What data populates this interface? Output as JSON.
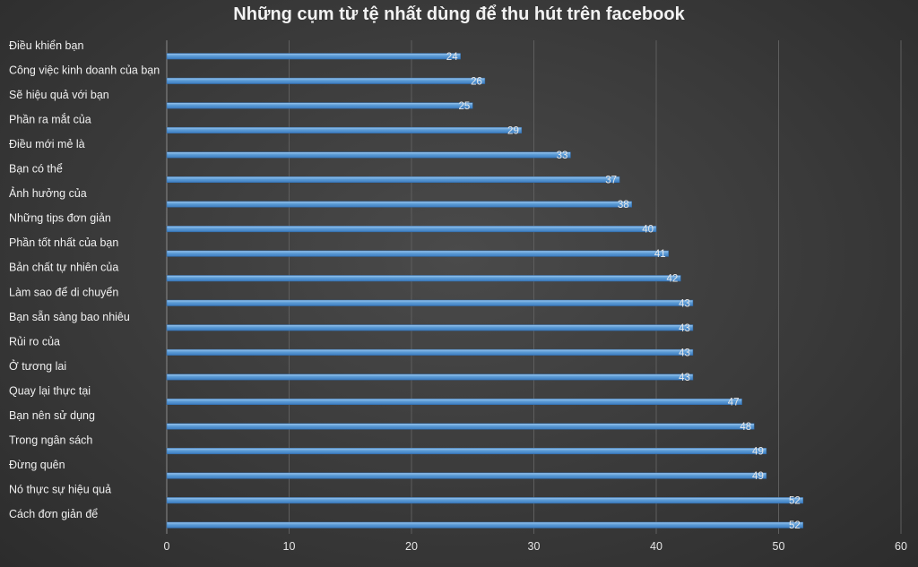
{
  "chart_data": {
    "type": "bar",
    "orientation": "horizontal",
    "title": "Những cụm từ tệ nhất dùng để thu hút trên facebook",
    "xlabel": "",
    "ylabel": "",
    "xlim": [
      0,
      60
    ],
    "x_ticks": [
      0,
      10,
      20,
      30,
      40,
      50,
      60
    ],
    "grid": true,
    "legend": "none",
    "bar_color": "#5b9bd5",
    "background_color": "#3c3c3c",
    "categories": [
      "Điều khiển bạn",
      "Công việc kinh doanh của bạn",
      "Sẽ hiệu quả với bạn",
      "Phần ra mắt của",
      "Điều mới mẻ là",
      "Bạn có thể",
      "Ảnh hưởng của",
      "Những tips đơn giản",
      "Phần tốt nhất của bạn",
      "Bản chất tự nhiên của",
      "Làm sao để di chuyển",
      "Bạn sẵn sàng bao nhiêu",
      "Rủi ro của",
      "Ở tương lai",
      "Quay lại thực tại",
      "Bạn nên sử dụng",
      "Trong ngân sách",
      "Đừng quên",
      "Nó thực sự hiệu quả",
      "Cách đơn giản để"
    ],
    "values": [
      24,
      26,
      25,
      29,
      33,
      37,
      38,
      40,
      41,
      42,
      43,
      43,
      43,
      43,
      47,
      48,
      49,
      49,
      52,
      52
    ]
  }
}
